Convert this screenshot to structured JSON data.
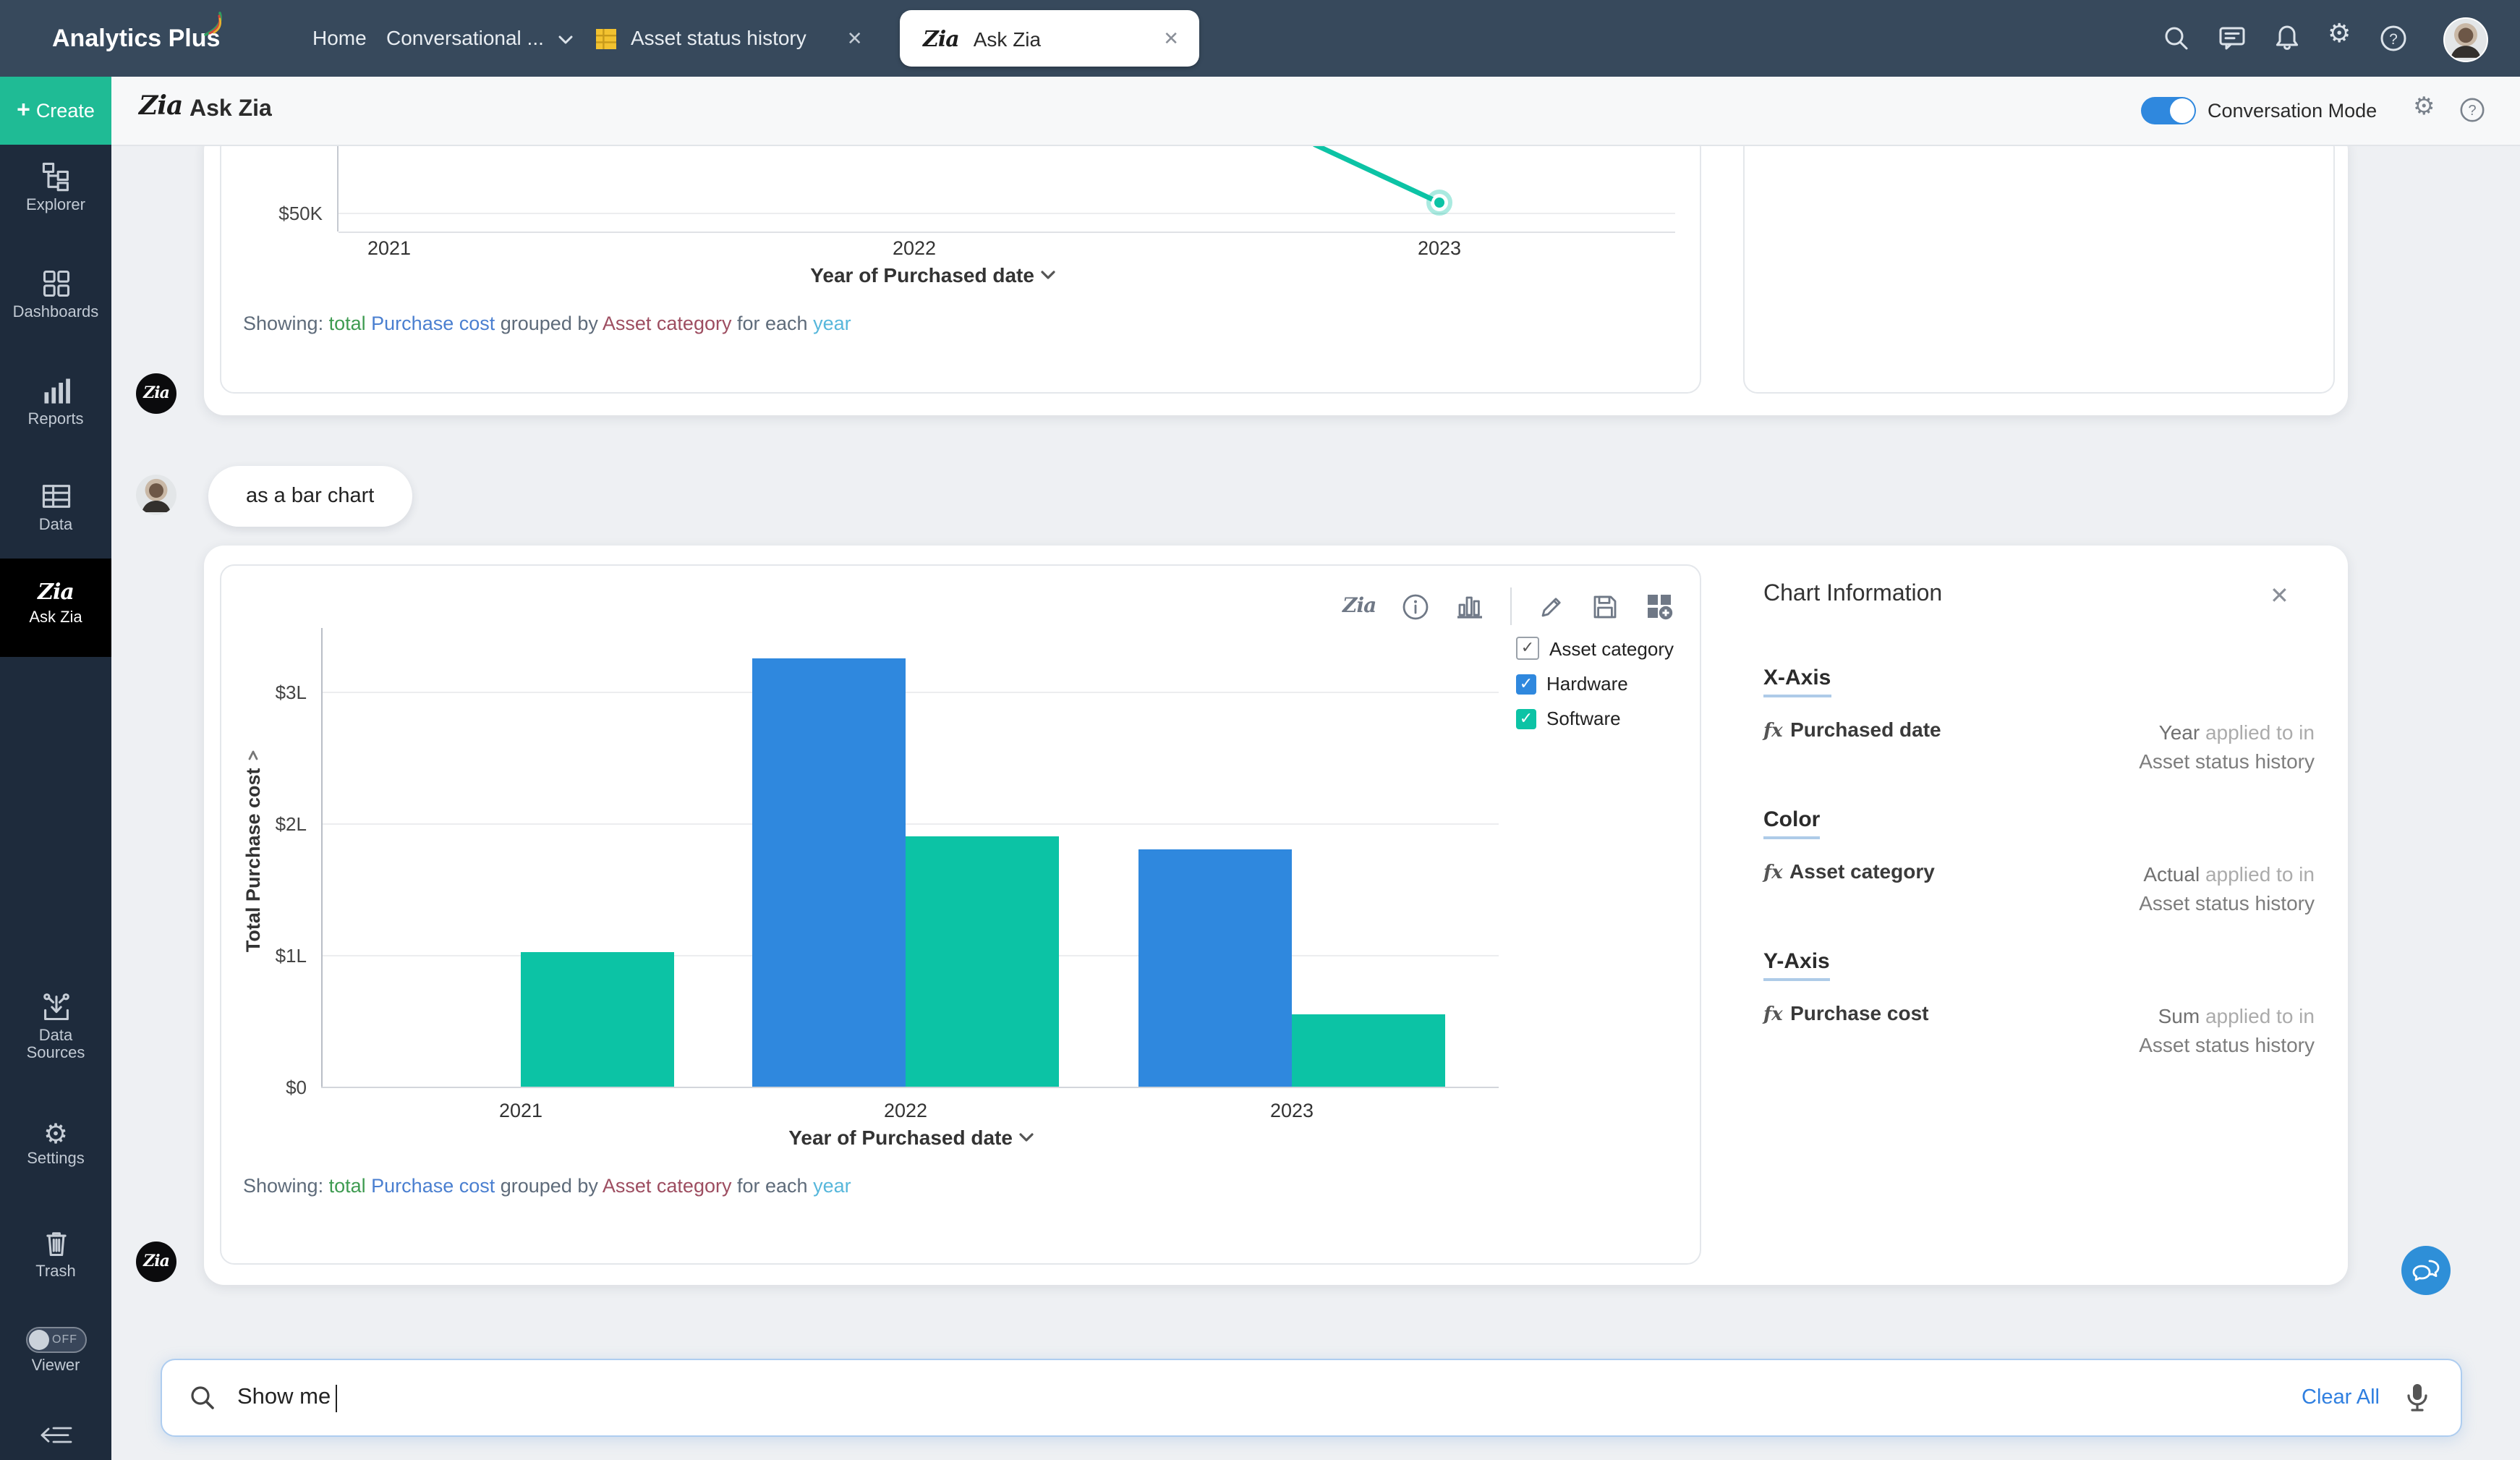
{
  "topnav": {
    "brand": "Analytics Plus",
    "menu": [
      {
        "label": "Home"
      },
      {
        "label": "Conversational ...",
        "has_chevron": true
      }
    ],
    "tabs": [
      {
        "label": "Asset status history",
        "icon": "table-icon",
        "closable": true,
        "active": false
      },
      {
        "label": "Ask Zia",
        "icon": "zia-icon",
        "closable": true,
        "active": true
      }
    ]
  },
  "sidebar": {
    "create_label": "Create",
    "items": [
      {
        "label": "Explorer"
      },
      {
        "label": "Dashboards"
      },
      {
        "label": "Reports"
      },
      {
        "label": "Data"
      },
      {
        "label": "Ask Zia",
        "active": true
      }
    ],
    "lower_items": [
      {
        "label_line1": "Data",
        "label_line2": "Sources"
      },
      {
        "label_line1": "Settings",
        "label_line2": ""
      },
      {
        "label_line1": "Trash",
        "label_line2": ""
      }
    ],
    "viewer": {
      "label": "Viewer",
      "state": "OFF"
    }
  },
  "header": {
    "title": "Ask Zia",
    "conversation_mode_label": "Conversation Mode",
    "toggle_on": true
  },
  "conversation": {
    "user_message": "as a bar chart",
    "showing_segments": [
      [
        "Showing:",
        "#5E6B7A"
      ],
      [
        "total",
        "#3E9B51"
      ],
      [
        "Purchase cost",
        "#4A7FD0"
      ],
      [
        "grouped by",
        "#5E6B7A"
      ],
      [
        "Asset category",
        "#9D4D60"
      ],
      [
        "for each",
        "#5E6B7A"
      ],
      [
        "year",
        "#57B7DB"
      ]
    ],
    "legend": {
      "group_label": "Asset category",
      "entries": [
        {
          "label": "Hardware",
          "color": "#2F88DE"
        },
        {
          "label": "Software",
          "color": "#0CC3A5"
        }
      ]
    },
    "chart_info": {
      "title": "Chart Information",
      "sections": [
        {
          "heading": "X-Axis",
          "field": "Purchased date",
          "fn": "Year",
          "applied": "applied to in",
          "table": "Asset status history"
        },
        {
          "heading": "Color",
          "field": "Asset category",
          "fn": "Actual",
          "applied": "applied to in",
          "table": "Asset status history"
        },
        {
          "heading": "Y-Axis",
          "field": "Purchase cost",
          "fn": "Sum",
          "applied": "applied to in",
          "table": "Asset status history"
        }
      ]
    }
  },
  "chart_data": [
    {
      "type": "line",
      "x": [
        "2021",
        "2022",
        "2023"
      ],
      "series": [
        {
          "name": "total Purchase cost",
          "color": "#0CC3A5",
          "visible_values": {
            "2023": 55000
          }
        }
      ],
      "ytick_labels_visible": [
        "$50K"
      ],
      "xlabel": "Year of Purchased date",
      "grid": true
    },
    {
      "type": "bar",
      "categories": [
        "2021",
        "2022",
        "2023"
      ],
      "series": [
        {
          "name": "Hardware",
          "color": "#2F88DE",
          "values": [
            null,
            3.25,
            1.8
          ]
        },
        {
          "name": "Software",
          "color": "#0CC3A5",
          "values": [
            1.02,
            1.9,
            0.55
          ]
        }
      ],
      "value_unit": "lakh dollars (L)",
      "ylabel": "Total Purchase cost",
      "xlabel": "Year of Purchased date",
      "ytick_labels": [
        "$0",
        "$1L",
        "$2L",
        "$3L"
      ],
      "ylim": [
        0,
        3.5
      ],
      "grid": true,
      "legend_position": "top-right"
    }
  ],
  "search": {
    "value": "Show me",
    "clear_label": "Clear All"
  }
}
